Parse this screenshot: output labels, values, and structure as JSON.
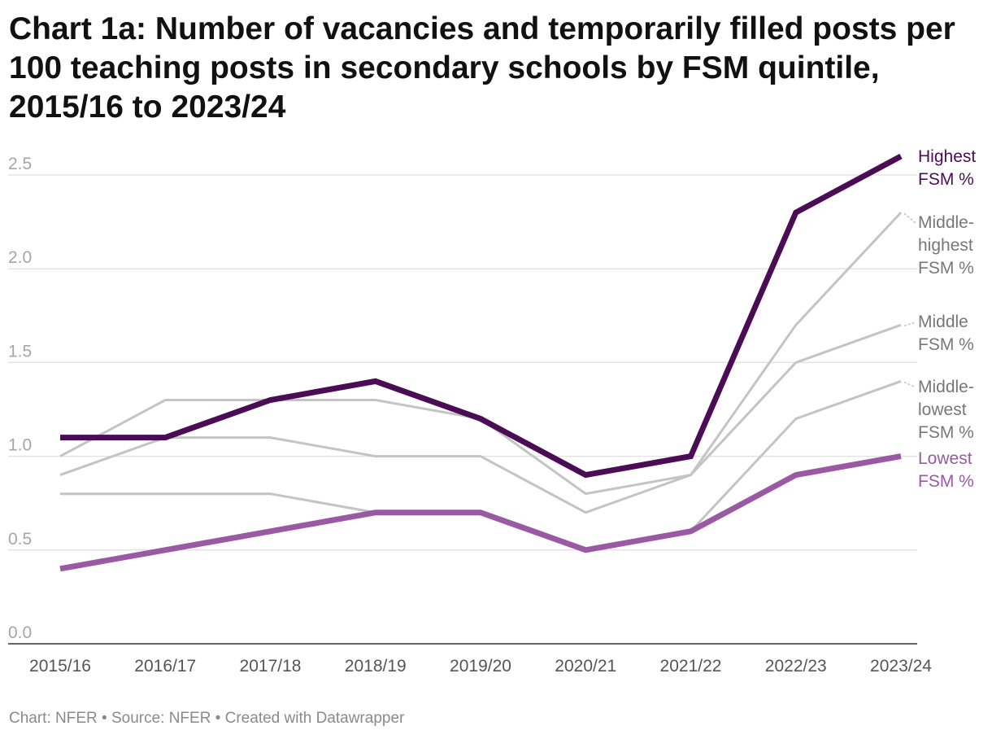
{
  "header": {
    "title": "Chart 1a: Number of vacancies and temporarily filled posts per 100 teaching posts in secondary schools by FSM quintile, 2015/16 to 2023/24"
  },
  "footer": {
    "text": "Chart: NFER • Source: NFER • Created with Datawrapper"
  },
  "chart_data": {
    "type": "line",
    "title": "Chart 1a: Number of vacancies and temporarily filled posts per 100 teaching posts in secondary schools by FSM quintile, 2015/16 to 2023/24",
    "xlabel": "",
    "ylabel": "",
    "ylim": [
      0,
      2.5
    ],
    "yticks": [
      "0.0",
      "0.5",
      "1.0",
      "1.5",
      "2.0",
      "2.5"
    ],
    "grid": true,
    "legend": "direct labels at right",
    "categories": [
      "2015/16",
      "2016/17",
      "2017/18",
      "2018/19",
      "2019/20",
      "2020/21",
      "2021/22",
      "2022/23",
      "2023/24"
    ],
    "series": [
      {
        "name": "Middle-highest FSM %",
        "label_lines": [
          "Middle-",
          "highest",
          "FSM %"
        ],
        "color": "#c4c4c4",
        "label_color": "#777777",
        "values": [
          1.0,
          1.3,
          1.3,
          1.3,
          1.2,
          0.8,
          0.9,
          1.7,
          2.3
        ]
      },
      {
        "name": "Middle FSM %",
        "label_lines": [
          "Middle",
          "FSM %"
        ],
        "color": "#c4c4c4",
        "label_color": "#777777",
        "values": [
          0.9,
          1.1,
          1.1,
          1.0,
          1.0,
          0.7,
          0.9,
          1.5,
          1.7
        ]
      },
      {
        "name": "Middle-lowest FSM %",
        "label_lines": [
          "Middle-",
          "lowest",
          "FSM %"
        ],
        "color": "#c4c4c4",
        "label_color": "#777777",
        "values": [
          0.8,
          0.8,
          0.8,
          0.7,
          0.7,
          0.5,
          0.6,
          1.2,
          1.4
        ]
      },
      {
        "name": "Lowest FSM %",
        "label_lines": [
          "Lowest",
          "FSM %"
        ],
        "color": "#9a59a3",
        "label_color": "#9a59a3",
        "values": [
          0.4,
          0.5,
          0.6,
          0.7,
          0.7,
          0.5,
          0.6,
          0.9,
          1.0
        ]
      },
      {
        "name": "Highest FSM %",
        "label_lines": [
          "Highest",
          "FSM %"
        ],
        "color": "#4a0d55",
        "label_color": "#4a0d55",
        "values": [
          1.1,
          1.1,
          1.3,
          1.4,
          1.2,
          0.9,
          1.0,
          2.3,
          2.6
        ]
      }
    ]
  }
}
